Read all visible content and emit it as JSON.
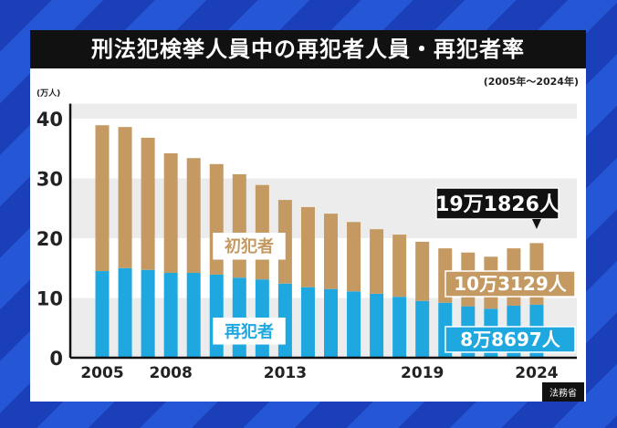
{
  "title": "刑法犯検挙人員中の再犯者人員・再犯者率",
  "period": "(2005年～2024年)",
  "source": "法務省",
  "chart_data": {
    "type": "bar",
    "stacked": true,
    "unit_label": "(万人)",
    "categories": [
      2005,
      2006,
      2007,
      2008,
      2009,
      2010,
      2011,
      2012,
      2013,
      2014,
      2015,
      2016,
      2017,
      2018,
      2019,
      2020,
      2021,
      2022,
      2023,
      2024
    ],
    "x_tick_labels": [
      "2005",
      "2008",
      "2013",
      "2019",
      "2024"
    ],
    "y_ticks": [
      0,
      10,
      20,
      30,
      40
    ],
    "ylim": [
      0,
      42
    ],
    "series": [
      {
        "name": "再犯者",
        "color": "#1fa8e0",
        "values": [
          14.5,
          15.0,
          14.7,
          14.2,
          14.2,
          13.9,
          13.4,
          13.1,
          12.4,
          11.8,
          11.5,
          11.1,
          10.7,
          10.2,
          9.5,
          9.2,
          8.6,
          8.2,
          8.7,
          8.87
        ]
      },
      {
        "name": "初犯者",
        "color": "#c49a62",
        "values": [
          24.4,
          23.6,
          22.1,
          20.0,
          19.2,
          18.5,
          17.3,
          15.8,
          14.0,
          13.4,
          12.6,
          11.6,
          10.8,
          10.4,
          9.9,
          9.1,
          9.0,
          8.7,
          9.6,
          10.31
        ]
      }
    ],
    "annotations": {
      "total_2024": "19万1826人",
      "first_2024": "10万3129人",
      "repeat_2024": "8万8697人"
    }
  }
}
